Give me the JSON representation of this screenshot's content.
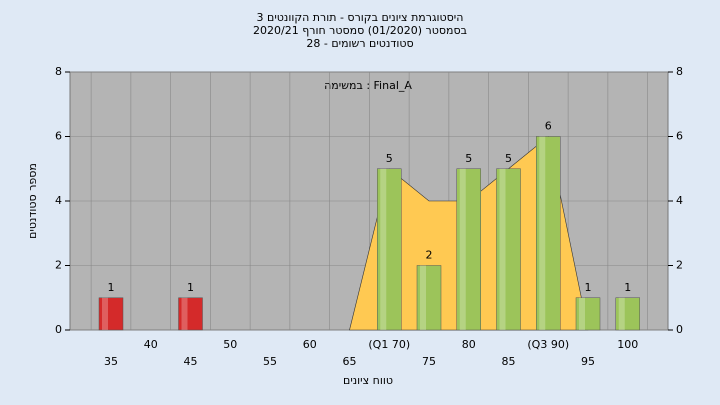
{
  "chart_data": {
    "type": "bar",
    "title": "היסטוגרמת ציונים בקורס - תורת הקוונטים 3",
    "subtitle": "בסמסטר  (01/2020)  סמסטר חורף 2020/21",
    "subtitle2": "סטודנטים רשומים - 28",
    "annotation": "במשימה : Final_A",
    "y_label": "מספר סטודנטים",
    "x_label": "טווח ציונים",
    "categories": [
      "35",
      "40",
      "45",
      "50",
      "55",
      "60",
      "65",
      "(Q1 70)",
      "75",
      "80",
      "85",
      "(Q3 90)",
      "95",
      "100"
    ],
    "values": [
      1,
      0,
      1,
      0,
      0,
      0,
      0,
      5,
      2,
      5,
      5,
      6,
      1,
      1
    ],
    "value_labels": [
      "1",
      null,
      "1",
      null,
      null,
      null,
      null,
      "5",
      "2",
      "5",
      "5",
      "6",
      "1",
      "1"
    ],
    "colors": [
      "#d42a2a",
      "#9cc45a",
      "#d42a2a",
      "#9cc45a",
      "#9cc45a",
      "#9cc45a",
      "#9cc45a",
      "#9cc45a",
      "#9cc45a",
      "#9cc45a",
      "#9cc45a",
      "#9cc45a",
      "#9cc45a",
      "#9cc45a"
    ],
    "area_values": [
      null,
      null,
      null,
      null,
      null,
      null,
      0,
      5,
      4,
      4,
      5,
      6,
      0,
      null
    ],
    "area_color": "#ffc952",
    "ylim": [
      0,
      8
    ],
    "yticks": [
      0,
      2,
      4,
      6,
      8
    ],
    "grid": true
  }
}
